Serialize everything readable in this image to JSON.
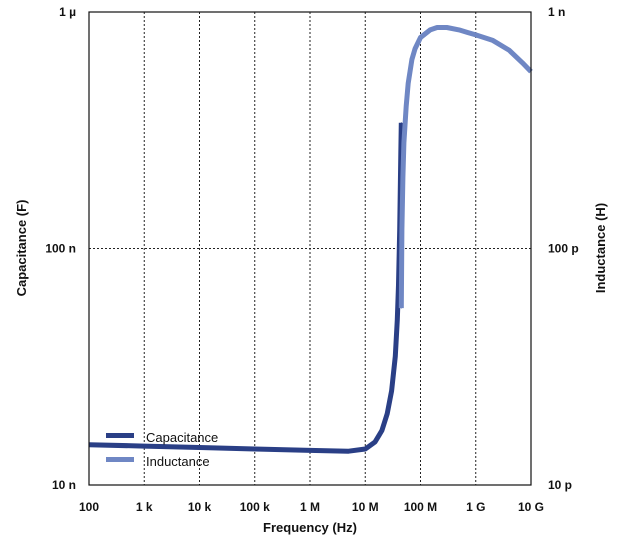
{
  "chart_data": {
    "type": "line",
    "title": "",
    "xlabel": "Frequency (Hz)",
    "ylabel": "Capacitance (F)",
    "y2label": "Inductance (H)",
    "x_scale": "log",
    "y_scale": "log",
    "xlim": [
      100,
      10000000000
    ],
    "ylim": [
      1e-08,
      1e-06
    ],
    "y2lim": [
      1e-11,
      1e-09
    ],
    "x_ticks": [
      {
        "value": 100,
        "label": "100"
      },
      {
        "value": 1000,
        "label": "1 k"
      },
      {
        "value": 10000,
        "label": "10 k"
      },
      {
        "value": 100000,
        "label": "100 k"
      },
      {
        "value": 1000000,
        "label": "1 M"
      },
      {
        "value": 10000000,
        "label": "10 M"
      },
      {
        "value": 100000000,
        "label": "100 M"
      },
      {
        "value": 1000000000,
        "label": "1 G"
      },
      {
        "value": 10000000000,
        "label": "10 G"
      }
    ],
    "y_ticks": [
      {
        "value": 1e-08,
        "label": "10 n"
      },
      {
        "value": 1e-07,
        "label": "100 n"
      },
      {
        "value": 1e-06,
        "label": "1 µ"
      }
    ],
    "y2_ticks": [
      {
        "value": 1e-11,
        "label": "10 p"
      },
      {
        "value": 1e-10,
        "label": "100 p"
      },
      {
        "value": 1e-09,
        "label": "1 n"
      }
    ],
    "grid": true,
    "legend_position": "bottom-left",
    "series": [
      {
        "name": "Capacitance",
        "axis": "left",
        "color": "#2a3f86",
        "x": [
          100,
          1000,
          10000,
          100000,
          1000000,
          5000000,
          10000000,
          15000000,
          20000000,
          25000000,
          30000000,
          35000000,
          38000000,
          40000000,
          42000000,
          44000000,
          45000000
        ],
        "y": [
          1.48e-08,
          1.46e-08,
          1.44e-08,
          1.42e-08,
          1.4e-08,
          1.39e-08,
          1.42e-08,
          1.52e-08,
          1.7e-08,
          2e-08,
          2.5e-08,
          3.5e-08,
          5e-08,
          7e-08,
          1.2e-07,
          2.5e-07,
          3.4e-07
        ]
      },
      {
        "name": "Inductance",
        "axis": "right",
        "color": "#6f87c4",
        "x": [
          45000000,
          46000000,
          48000000,
          50000000,
          55000000,
          60000000,
          70000000,
          80000000,
          100000000,
          150000000,
          200000000,
          300000000,
          500000000,
          700000000,
          1000000000,
          2000000000,
          4000000000,
          7000000000,
          10000000000
        ],
        "y": [
          5.6e-11,
          1.2e-10,
          2e-10,
          2.8e-10,
          4e-10,
          5e-10,
          6.3e-10,
          7e-10,
          7.8e-10,
          8.4e-10,
          8.6e-10,
          8.6e-10,
          8.4e-10,
          8.2e-10,
          8e-10,
          7.6e-10,
          6.9e-10,
          6.1e-10,
          5.6e-10
        ]
      }
    ]
  }
}
